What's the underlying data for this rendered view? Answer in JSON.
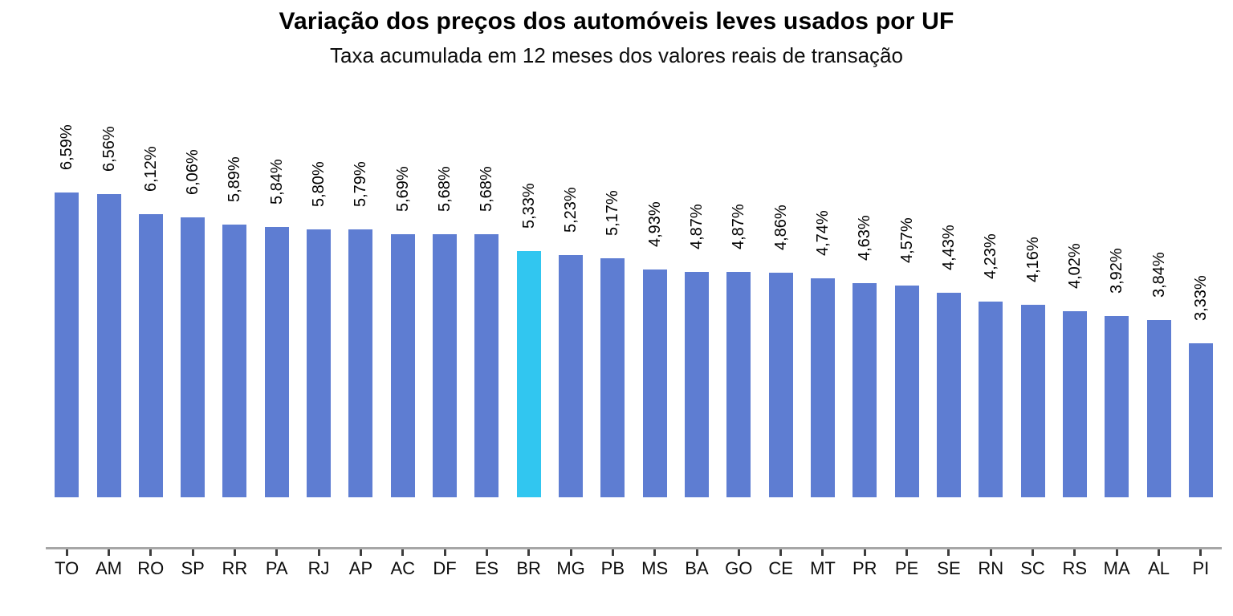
{
  "title": "Variação dos preços dos automóveis leves usados por UF",
  "subtitle": "Taxa acumulada em 12 meses dos valores reais de transação",
  "chart_data": {
    "type": "bar",
    "categories": [
      "TO",
      "AM",
      "RO",
      "SP",
      "RR",
      "PA",
      "RJ",
      "AP",
      "AC",
      "DF",
      "ES",
      "BR",
      "MG",
      "PB",
      "MS",
      "BA",
      "GO",
      "CE",
      "MT",
      "PR",
      "PE",
      "SE",
      "RN",
      "SC",
      "RS",
      "MA",
      "AL",
      "PI"
    ],
    "values": [
      6.59,
      6.56,
      6.12,
      6.06,
      5.89,
      5.84,
      5.8,
      5.79,
      5.69,
      5.68,
      5.68,
      5.33,
      5.23,
      5.17,
      4.93,
      4.87,
      4.87,
      4.86,
      4.74,
      4.63,
      4.57,
      4.43,
      4.23,
      4.16,
      4.02,
      3.92,
      3.84,
      3.33
    ],
    "value_labels": [
      "6,59%",
      "6,56%",
      "6,12%",
      "6,06%",
      "5,89%",
      "5,84%",
      "5,80%",
      "5,79%",
      "5,69%",
      "5,68%",
      "5,68%",
      "5,33%",
      "5,23%",
      "5,17%",
      "4,93%",
      "4,87%",
      "4,87%",
      "4,86%",
      "4,74%",
      "4,63%",
      "4,57%",
      "4,43%",
      "4,23%",
      "4,16%",
      "4,02%",
      "3,92%",
      "3,84%",
      "3,33%"
    ],
    "highlight_category": "BR",
    "title": "Variação dos preços dos automóveis leves usados por UF",
    "subtitle": "Taxa acumulada em 12 meses dos valores reais de transação",
    "xlabel": "",
    "ylabel": "",
    "ylim": [
      0,
      7
    ],
    "grid": false,
    "legend_position": "none",
    "colors": {
      "bar": "#5e7dd2",
      "highlight": "#31c6f0",
      "axis_line": "#a6a6a6",
      "tick": "#3d3d3d",
      "text": "#000000"
    }
  }
}
